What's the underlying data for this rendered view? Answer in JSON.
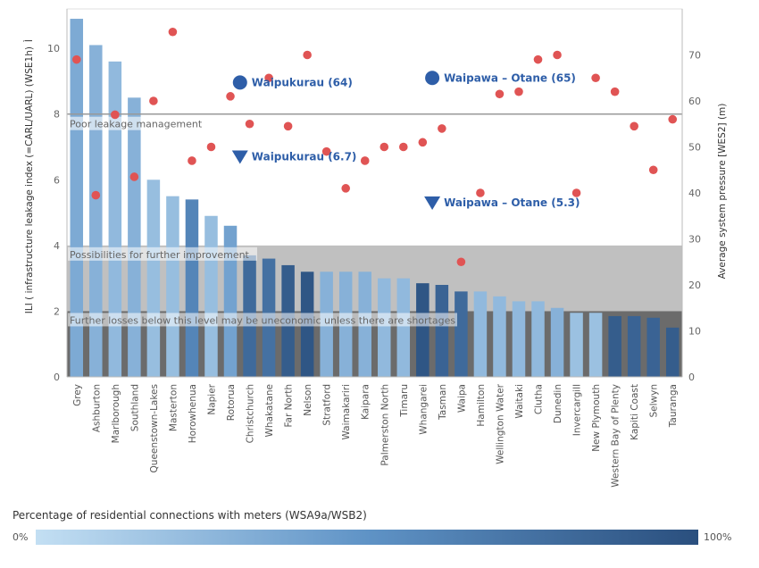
{
  "chart_data": {
    "type": "bar",
    "categories": [
      "Grey",
      "Ashburton",
      "Marlborough",
      "Southland",
      "Queenstown-Lakes",
      "Masterton",
      "Horowhenua",
      "Napier",
      "Rotorua",
      "Christchurch",
      "Whakatane",
      "Far North",
      "Nelson",
      "Stratford",
      "Waimakariri",
      "Kaipara",
      "Palmerston North",
      "Timaru",
      "Whangarei",
      "Tasman",
      "Waipa",
      "Hamilton",
      "Wellington Water",
      "Waitaki",
      "Clutha",
      "Dunedin",
      "Invercargill",
      "New Plymouth",
      "Western Bay of Plenty",
      "Kapiti Coast",
      "Selwyn",
      "Tauranga"
    ],
    "series": [
      {
        "name": "ILI ( infrastructure leakage index (=CARL/UARL) (WSE1h)",
        "axis": "left",
        "mark": "bar",
        "values": [
          10.9,
          10.1,
          9.6,
          8.5,
          6.0,
          5.5,
          5.4,
          4.9,
          4.6,
          3.7,
          3.6,
          3.4,
          3.2,
          3.2,
          3.2,
          3.2,
          3.0,
          3.0,
          2.85,
          2.8,
          2.6,
          2.6,
          2.45,
          2.3,
          2.3,
          2.1,
          1.95,
          1.95,
          1.85,
          1.85,
          1.8,
          1.5
        ]
      },
      {
        "name": "Average system pressure [WES2] (m)",
        "axis": "right",
        "mark": "dot",
        "values": [
          69,
          39.5,
          57,
          43.5,
          60,
          75,
          47,
          50,
          61,
          55,
          65,
          54.5,
          70,
          49,
          41,
          47,
          50,
          50,
          51,
          54,
          25,
          40,
          61.5,
          62,
          69,
          70,
          40,
          65,
          62,
          54.5,
          45,
          56
        ]
      }
    ],
    "meter_pct": [
      35,
      30,
      25,
      30,
      22,
      22,
      60,
      22,
      40,
      80,
      75,
      90,
      95,
      30,
      30,
      30,
      25,
      25,
      95,
      85,
      80,
      25,
      25,
      25,
      25,
      30,
      20,
      20,
      90,
      85,
      85,
      90
    ],
    "xlabel": "",
    "ylabel": "ILI ( infrastructure leakage index (=CARL/UARL) (WSE1h)",
    "ylabel_right": "Average system pressure [WES2] (m)",
    "ylim": [
      0,
      11.2
    ],
    "ylim_right": [
      0,
      80
    ],
    "yticks": [
      0,
      2,
      4,
      6,
      8,
      10
    ],
    "yticks_right": [
      0,
      10,
      20,
      30,
      40,
      50,
      60,
      70
    ],
    "reference_lines": [
      {
        "value": 8,
        "label": "Poor leakage management"
      }
    ],
    "bands": [
      {
        "from": 2,
        "to": 4,
        "label": "Possibilities for further improvement",
        "color": "#c0c0c0"
      },
      {
        "from": 0,
        "to": 2,
        "label": "Further losses below this level may be uneconomic unless there are shortages",
        "color": "#6b6b6b"
      }
    ],
    "annotations": [
      {
        "label": "Waipukurau (64)",
        "marker": "circle",
        "axis": "right",
        "after_index": 8,
        "value": 64
      },
      {
        "label": "Waipawa – Otane (65)",
        "marker": "circle",
        "axis": "right",
        "after_index": 18,
        "value": 65
      },
      {
        "label": "Waipukurau (6.7)",
        "marker": "triangle",
        "axis": "left",
        "after_index": 8,
        "value": 6.7
      },
      {
        "label": "Waipawa – Otane (5.3)",
        "marker": "triangle",
        "axis": "left",
        "after_index": 18,
        "value": 5.3
      }
    ],
    "legend": {
      "title": "Percentage of residential connections with meters (WSA9a/WSB2)",
      "min_label": "0%",
      "max_label": "100%",
      "color_low": "#c3dff3",
      "color_mid": "#5f93c6",
      "color_high": "#2a4f7e"
    },
    "colors": {
      "dot": "#e05454",
      "annotation": "#2e5ea8",
      "threshold_line": "#999999"
    },
    "axis_top_label": "Ì"
  }
}
